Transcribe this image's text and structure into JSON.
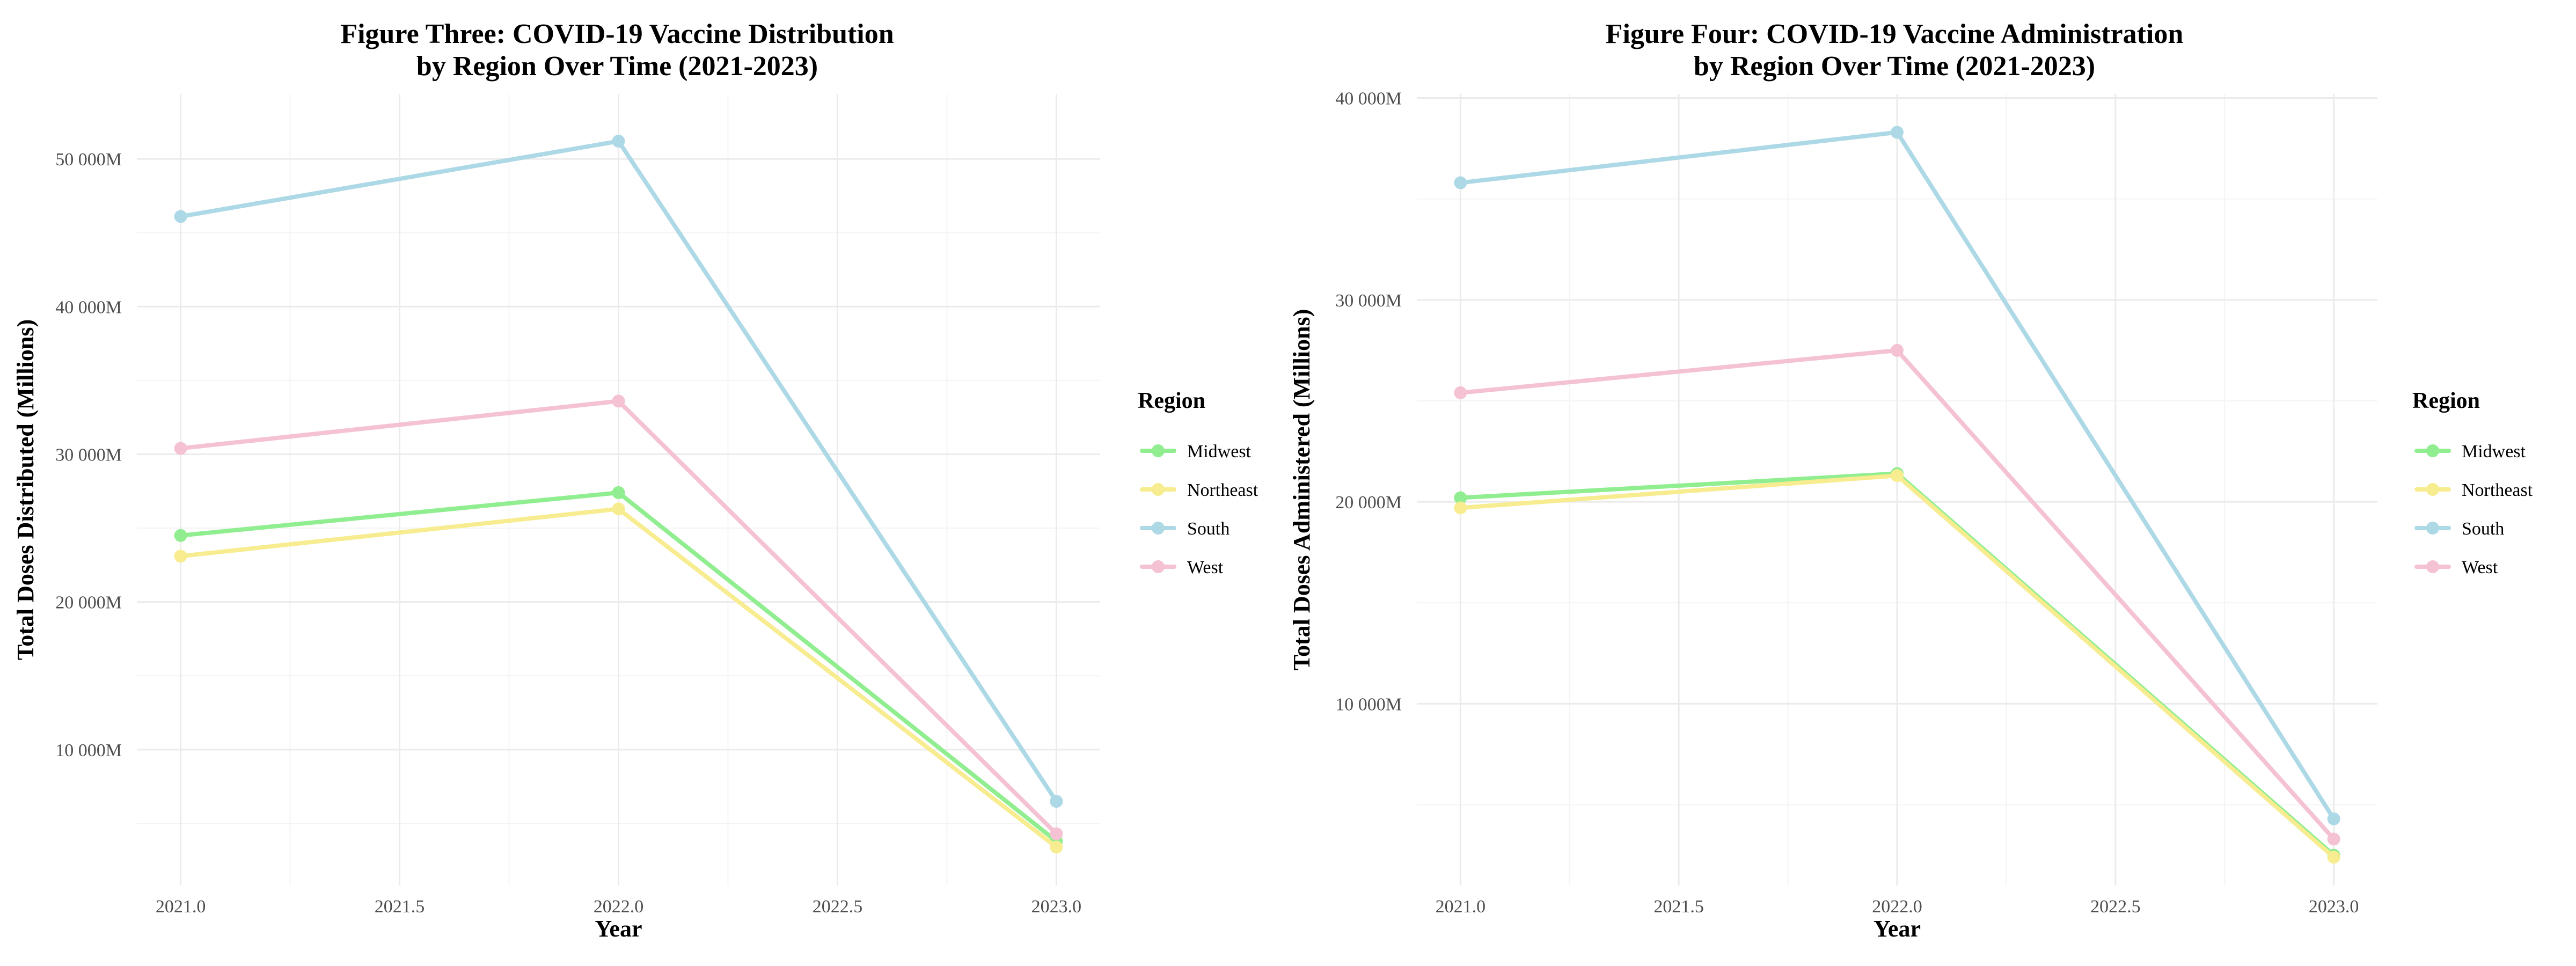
{
  "chart_data": [
    {
      "type": "line",
      "title_line1": "Figure Three: COVID-19 Vaccine Distribution",
      "title_line2": "by Region Over Time (2021-2023)",
      "xlabel": "Year",
      "ylabel": "Total Doses Distributed (Millions)",
      "x": [
        2021,
        2022,
        2023
      ],
      "xlim": [
        2020.9,
        2023.1
      ],
      "ylim": [
        800,
        54400
      ],
      "x_ticks": [
        2021.0,
        2021.5,
        2022.0,
        2022.5,
        2023.0
      ],
      "x_tick_labels": [
        "2021.0",
        "2021.5",
        "2022.0",
        "2022.5",
        "2023.0"
      ],
      "y_ticks": [
        10000,
        20000,
        30000,
        40000,
        50000
      ],
      "y_tick_labels": [
        "10 000M",
        "20 000M",
        "30 000M",
        "40 000M",
        "50 000M"
      ],
      "grid": true,
      "legend_title": "Region",
      "legend_position": "right",
      "series": [
        {
          "name": "Midwest",
          "color": "#90ee90",
          "values": [
            24500,
            27400,
            3800
          ]
        },
        {
          "name": "Northeast",
          "color": "#f7ec8f",
          "values": [
            23100,
            26300,
            3400
          ]
        },
        {
          "name": "South",
          "color": "#add8e6",
          "values": [
            46100,
            51200,
            6500
          ]
        },
        {
          "name": "West",
          "color": "#f4c2d3",
          "values": [
            30400,
            33600,
            4300
          ]
        }
      ]
    },
    {
      "type": "line",
      "title_line1": "Figure Four: COVID-19 Vaccine Administration",
      "title_line2": "by Region Over Time (2021-2023)",
      "xlabel": "Year",
      "ylabel": "Total Doses Administered (Millions)",
      "x": [
        2021,
        2022,
        2023
      ],
      "xlim": [
        2020.9,
        2023.1
      ],
      "ylim": [
        1000,
        40200
      ],
      "x_ticks": [
        2021.0,
        2021.5,
        2022.0,
        2022.5,
        2023.0
      ],
      "x_tick_labels": [
        "2021.0",
        "2021.5",
        "2022.0",
        "2022.5",
        "2023.0"
      ],
      "y_ticks": [
        10000,
        20000,
        30000,
        40000
      ],
      "y_tick_labels": [
        "10 000M",
        "20 000M",
        "30 000M",
        "40 000M"
      ],
      "grid": true,
      "legend_title": "Region",
      "legend_position": "right",
      "series": [
        {
          "name": "Midwest",
          "color": "#90ee90",
          "values": [
            20200,
            21400,
            2500
          ]
        },
        {
          "name": "Northeast",
          "color": "#f7ec8f",
          "values": [
            19700,
            21300,
            2400
          ]
        },
        {
          "name": "South",
          "color": "#add8e6",
          "values": [
            35800,
            38300,
            4300
          ]
        },
        {
          "name": "West",
          "color": "#f4c2d3",
          "values": [
            25400,
            27500,
            3300
          ]
        }
      ]
    }
  ]
}
